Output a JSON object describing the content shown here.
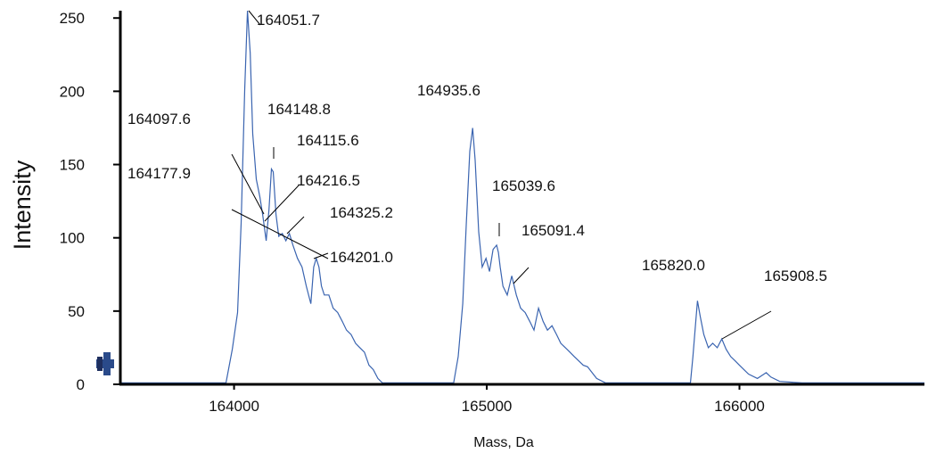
{
  "chart_data": {
    "type": "line",
    "ylabel": "Intensity",
    "xlabel": "Mass, Da",
    "xlim": [
      163550,
      166732
    ],
    "ylim": [
      0,
      255
    ],
    "xticks": [
      164000,
      165000,
      166000
    ],
    "yticks": [
      0,
      50,
      100,
      150,
      200,
      250
    ],
    "grid": false,
    "series": [
      {
        "color": "#3a64b0",
        "x": [
          163551,
          163968,
          163993,
          164014,
          164028,
          164042,
          164053,
          164064,
          164074,
          164088,
          164102,
          164113,
          164127,
          164138,
          164148,
          164155,
          164166,
          164177,
          164191,
          164205,
          164219,
          164233,
          164251,
          164269,
          164286,
          164304,
          164315,
          164325,
          164336,
          164346,
          164357,
          164375,
          164392,
          164410,
          164428,
          164445,
          164463,
          164481,
          164498,
          164516,
          164534,
          164551,
          164569,
          164587,
          164869,
          164887,
          164905,
          164919,
          164933,
          164944,
          164954,
          164968,
          164982,
          164997,
          165011,
          165025,
          165039,
          165046,
          165053,
          165064,
          165081,
          165099,
          165117,
          165134,
          165152,
          165170,
          165187,
          165205,
          165223,
          165240,
          165258,
          165276,
          165293,
          165311,
          165329,
          165346,
          165364,
          165382,
          165399,
          165417,
          165435,
          165470,
          165806,
          165816,
          165827,
          165834,
          165845,
          165859,
          165877,
          165894,
          165912,
          165930,
          165947,
          165965,
          165983,
          166000,
          166018,
          166036,
          166071,
          166106,
          166124,
          166159,
          166248,
          166732
        ],
        "values": [
          1,
          1,
          24,
          49,
          110,
          201,
          255,
          226,
          171,
          140,
          128,
          116,
          98,
          119,
          147,
          145,
          116,
          101,
          103,
          98,
          103,
          95,
          86,
          80,
          67,
          55,
          80,
          86,
          80,
          67,
          61,
          61,
          52,
          49,
          43,
          37,
          34,
          28,
          25,
          22,
          13,
          10,
          4,
          1,
          1,
          19,
          55,
          110,
          159,
          175,
          153,
          104,
          80,
          86,
          77,
          92,
          95,
          90,
          80,
          67,
          61,
          74,
          61,
          52,
          49,
          43,
          37,
          52,
          43,
          37,
          40,
          34,
          28,
          25,
          22,
          19,
          16,
          13,
          12,
          8,
          4,
          1,
          1,
          19,
          43,
          57,
          46,
          34,
          25,
          28,
          25,
          31,
          24,
          19,
          16,
          13,
          10,
          7,
          4,
          8,
          5,
          2,
          1,
          1
        ]
      }
    ],
    "annotations": [
      "164051.7",
      "164148.8",
      "164097.6",
      "164115.6",
      "164177.9",
      "164216.5",
      "164325.2",
      "164201.0",
      "164935.6",
      "165039.6",
      "165091.4",
      "165820.0",
      "165908.5"
    ]
  }
}
